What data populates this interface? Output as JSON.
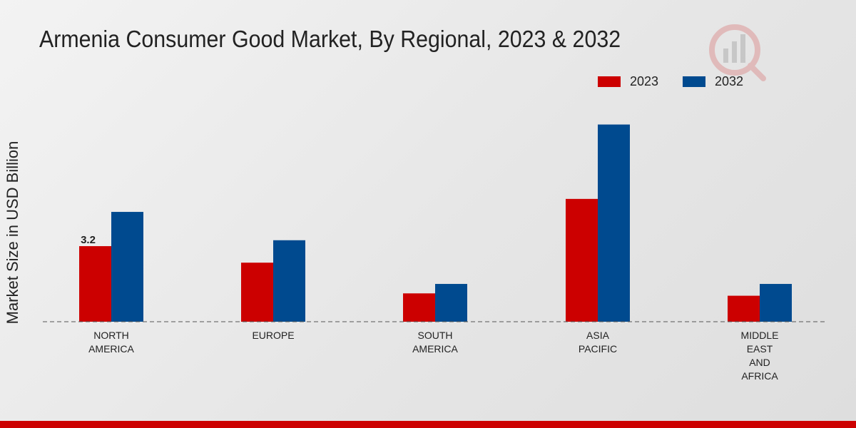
{
  "chart_data": {
    "type": "bar",
    "title": "Armenia Consumer Good Market, By Regional, 2023 & 2032",
    "ylabel": "Market Size in USD Billion",
    "xlabel": "",
    "categories": [
      "NORTH\nAMERICA",
      "EUROPE",
      "SOUTH\nAMERICA",
      "ASIA\nPACIFIC",
      "MIDDLE\nEAST\nAND\nAFRICA"
    ],
    "series": [
      {
        "name": "2023",
        "color": "#cc0000",
        "values": [
          3.2,
          2.5,
          1.2,
          5.2,
          1.1
        ]
      },
      {
        "name": "2032",
        "color": "#004a8f",
        "values": [
          4.65,
          3.45,
          1.6,
          8.35,
          1.6
        ]
      }
    ],
    "data_labels": [
      {
        "series": "2023",
        "category_index": 0,
        "text": "3.2"
      }
    ],
    "ylim": [
      0,
      13.2
    ],
    "grid": false,
    "legend_position": "top-right",
    "baseline_style": "dashed"
  }
}
